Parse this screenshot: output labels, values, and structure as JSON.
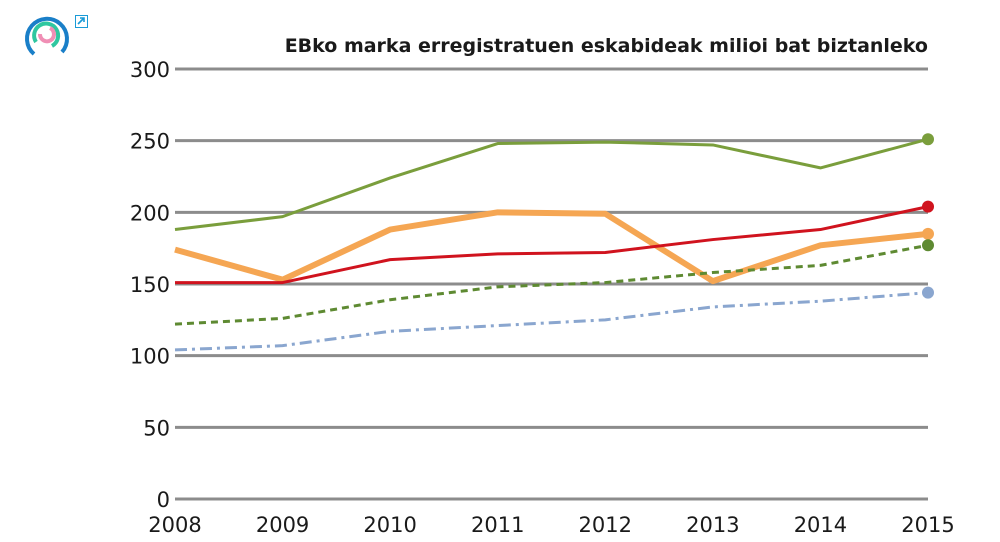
{
  "chart_data": {
    "type": "line",
    "title": "EBko marka erregistratuen eskabideak milioi bat biztanleko",
    "x": [
      "2008",
      "2009",
      "2010",
      "2011",
      "2012",
      "2013",
      "2014",
      "2015"
    ],
    "ylim": [
      0,
      300
    ],
    "yticks": [
      "0",
      "50",
      "100",
      "150",
      "200",
      "250",
      "300"
    ],
    "grid": true,
    "series": [
      {
        "color": "#7a9e3c",
        "style": "solid",
        "width": 3,
        "values": [
          188,
          197,
          224,
          248,
          249,
          247,
          231,
          251
        ]
      },
      {
        "color": "#f5a653",
        "style": "solid",
        "width": 6,
        "values": [
          174,
          153,
          188,
          200,
          199,
          152,
          177,
          185
        ]
      },
      {
        "color": "#d0131e",
        "style": "solid",
        "width": 3,
        "values": [
          151,
          151,
          167,
          171,
          172,
          181,
          188,
          204
        ]
      },
      {
        "color": "#5e8a32",
        "style": "dashed",
        "width": 3,
        "values": [
          122,
          126,
          139,
          148,
          151,
          158,
          163,
          177
        ]
      },
      {
        "color": "#8aa6cf",
        "style": "dashdot",
        "width": 3,
        "values": [
          104,
          107,
          117,
          121,
          125,
          134,
          138,
          144
        ]
      }
    ]
  },
  "icons": {
    "logo": "circular-logo",
    "expand": "expand-arrow-icon"
  }
}
